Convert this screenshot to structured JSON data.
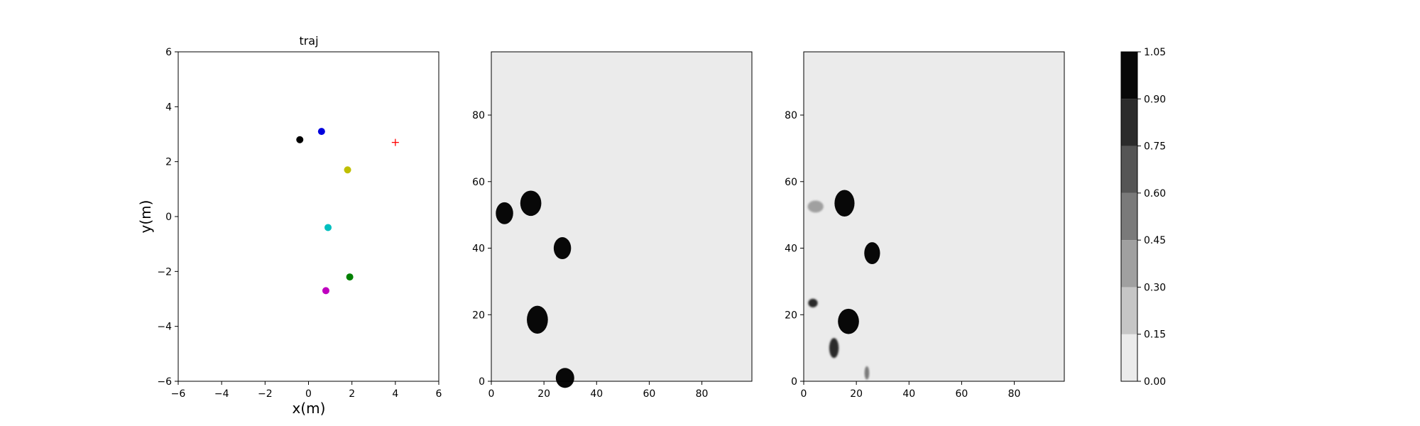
{
  "chart_data": [
    {
      "type": "scatter",
      "title": "traj",
      "xlabel": "x(m)",
      "ylabel": "y(m)",
      "xlim": [
        -6,
        6
      ],
      "ylim": [
        -6,
        6
      ],
      "xticks": [
        -6,
        -4,
        -2,
        0,
        2,
        4,
        6
      ],
      "yticks": [
        -6,
        -4,
        -2,
        0,
        2,
        4,
        6
      ],
      "tick_labels_x": [
        "−6",
        "−4",
        "−2",
        "0",
        "2",
        "4",
        "6"
      ],
      "tick_labels_y": [
        "−6",
        "−4",
        "−2",
        "0",
        "2",
        "4",
        "6"
      ],
      "grid": false,
      "points": [
        {
          "x": -0.4,
          "y": 2.8,
          "color": "#000000",
          "marker": "circle"
        },
        {
          "x": 0.6,
          "y": 3.1,
          "color": "#0000dd",
          "marker": "circle"
        },
        {
          "x": 1.8,
          "y": 1.7,
          "color": "#bfbf00",
          "marker": "circle"
        },
        {
          "x": 0.9,
          "y": -0.4,
          "color": "#00bfbf",
          "marker": "circle"
        },
        {
          "x": 1.9,
          "y": -2.2,
          "color": "#008000",
          "marker": "circle"
        },
        {
          "x": 0.8,
          "y": -2.7,
          "color": "#bf00bf",
          "marker": "circle"
        },
        {
          "x": 4.0,
          "y": 2.7,
          "color": "#ff0000",
          "marker": "plus"
        }
      ]
    },
    {
      "type": "heatmap",
      "title": "",
      "xlim": [
        0,
        99
      ],
      "ylim": [
        0,
        99
      ],
      "xticks": [
        0,
        20,
        40,
        60,
        80
      ],
      "yticks": [
        0,
        20,
        40,
        60,
        80
      ],
      "tick_labels_x": [
        "0",
        "20",
        "40",
        "60",
        "80"
      ],
      "tick_labels_y": [
        "0",
        "20",
        "40",
        "60",
        "80"
      ],
      "background_value": 0.05,
      "blobs": [
        {
          "x": 5,
          "y": 50.5,
          "rx": 3.3,
          "ry": 3.3,
          "value": 1.0
        },
        {
          "x": 15,
          "y": 53.5,
          "rx": 4.0,
          "ry": 3.8,
          "value": 1.0
        },
        {
          "x": 27,
          "y": 40,
          "rx": 3.3,
          "ry": 3.3,
          "value": 1.0
        },
        {
          "x": 17.5,
          "y": 18.5,
          "rx": 4.0,
          "ry": 4.2,
          "value": 1.0
        },
        {
          "x": 28,
          "y": 1,
          "rx": 3.5,
          "ry": 3.0,
          "value": 1.0
        }
      ]
    },
    {
      "type": "heatmap",
      "title": "",
      "xlim": [
        0,
        99
      ],
      "ylim": [
        0,
        99
      ],
      "xticks": [
        0,
        20,
        40,
        60,
        80
      ],
      "yticks": [
        0,
        20,
        40,
        60,
        80
      ],
      "tick_labels_x": [
        "0",
        "20",
        "40",
        "60",
        "80"
      ],
      "tick_labels_y": [
        "0",
        "20",
        "40",
        "60",
        "80"
      ],
      "background_value": 0.05,
      "blobs": [
        {
          "x": 4.5,
          "y": 52.5,
          "rx": 3.0,
          "ry": 1.8,
          "value": 0.3
        },
        {
          "x": 15.5,
          "y": 53.5,
          "rx": 3.8,
          "ry": 4.0,
          "value": 1.0
        },
        {
          "x": 26,
          "y": 38.5,
          "rx": 3.0,
          "ry": 3.3,
          "value": 1.0
        },
        {
          "x": 3.5,
          "y": 23.5,
          "rx": 1.8,
          "ry": 1.3,
          "value": 0.75
        },
        {
          "x": 17,
          "y": 18,
          "rx": 4.0,
          "ry": 3.8,
          "value": 1.0
        },
        {
          "x": 11.5,
          "y": 10,
          "rx": 1.8,
          "ry": 3.0,
          "value": 0.75
        },
        {
          "x": 24,
          "y": 2.5,
          "rx": 0.9,
          "ry": 2.0,
          "value": 0.45
        }
      ]
    },
    {
      "type": "colorbar",
      "levels": [
        0.0,
        0.15,
        0.3,
        0.45,
        0.6,
        0.75,
        0.9,
        1.05
      ],
      "tick_labels": [
        "0.00",
        "0.15",
        "0.30",
        "0.45",
        "0.60",
        "0.75",
        "0.90",
        "1.05"
      ],
      "colors": [
        "#ebebeb",
        "#c6c6c6",
        "#a0a0a0",
        "#7a7a7a",
        "#555555",
        "#2b2b2b",
        "#080808"
      ]
    }
  ]
}
